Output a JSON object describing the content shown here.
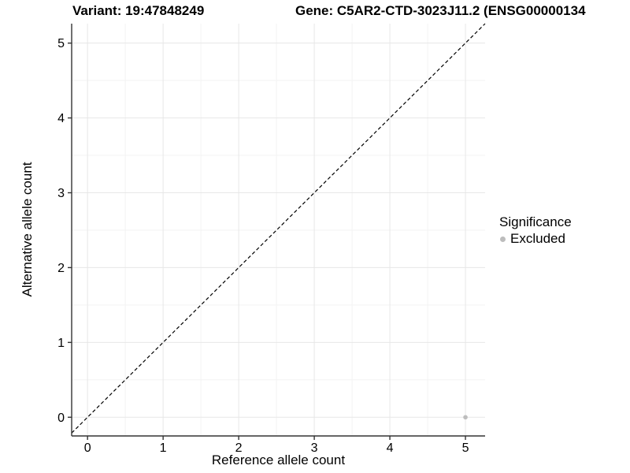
{
  "chart_data": {
    "type": "scatter",
    "title_left": "Variant: 19:47848249",
    "title_right": "Gene: C5AR2-CTD-3023J11.2 (ENSG00000134",
    "xlabel": "Reference allele count",
    "ylabel": "Alternative allele count",
    "x_ticks": [
      "0",
      "1",
      "2",
      "3",
      "4",
      "5"
    ],
    "y_ticks": [
      "0",
      "1",
      "2",
      "3",
      "4",
      "5"
    ],
    "xlim": [
      -0.21,
      5.26
    ],
    "ylim": [
      -0.25,
      5.26
    ],
    "grid": {
      "major_every": 1,
      "minor_every": 0.5,
      "visible": true
    },
    "reference_line": {
      "kind": "identity-diagonal",
      "style": "dashed",
      "color": "#000000"
    },
    "series": [
      {
        "name": "Excluded",
        "points": [
          {
            "x": 5,
            "y": 0
          }
        ],
        "color": "#bdbdbd"
      }
    ],
    "legend": {
      "title": "Significance",
      "position": "right",
      "items": [
        {
          "label": "Excluded",
          "color": "#bdbdbd",
          "marker": "point-icon"
        }
      ]
    },
    "colors": {
      "grid_major": "#e7e7e7",
      "grid_minor": "#f3f3f3",
      "axis_line": "#333333",
      "tick": "#333333",
      "text": "#000000",
      "background": "#ffffff"
    }
  }
}
